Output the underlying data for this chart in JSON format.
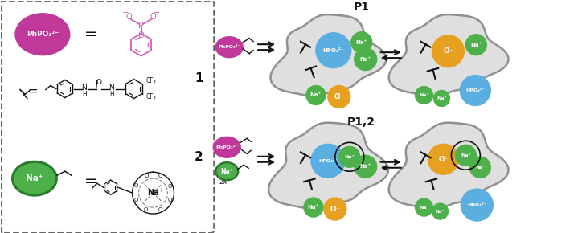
{
  "fig_width": 7.24,
  "fig_height": 2.9,
  "dpi": 100,
  "bg_color": "#ffffff",
  "magenta_color": "#c0399a",
  "magenta_struct": "#d060b0",
  "green_color": "#4db04a",
  "green_dark": "#2d7a2d",
  "blue_color": "#5baee0",
  "gold_color": "#e8a020",
  "gray_blob": "#b0b0b0",
  "gray_blob_edge": "#909090",
  "dark_color": "#111111",
  "p1_label": "P1",
  "p12_label": "P1,2",
  "phpo3_label": "PhPO₃²⁻",
  "na_label": "Na⁺",
  "hpo4_label": "HPO₄²⁻",
  "cl_label": "Cl⁻",
  "label1": "1",
  "label2": "2",
  "x2_label": "2x"
}
